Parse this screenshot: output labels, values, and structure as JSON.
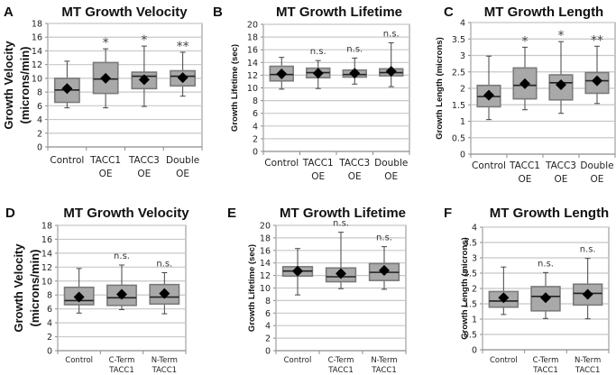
{
  "chart_data": [
    {
      "panel": "A",
      "type": "box",
      "title": "MT Growth Velocity",
      "ylabel_lines": [
        "Growth Velocity",
        "(microns/min)"
      ],
      "ylim": [
        0,
        18
      ],
      "yticks": [
        0,
        2,
        4,
        6,
        8,
        10,
        12,
        14,
        16,
        18
      ],
      "grid": true,
      "categories": [
        [
          "Control"
        ],
        [
          "TACC1",
          "OE"
        ],
        [
          "TACC3",
          "OE"
        ],
        [
          "Double",
          "OE"
        ]
      ],
      "boxes": [
        {
          "min": 5.7,
          "q1": 6.5,
          "median": 8.3,
          "q3": 10.0,
          "max": 12.5,
          "mean": 8.5,
          "sig": ""
        },
        {
          "min": 5.7,
          "q1": 7.8,
          "median": 9.9,
          "q3": 12.3,
          "max": 14.3,
          "mean": 10.0,
          "sig": "*"
        },
        {
          "min": 5.9,
          "q1": 8.5,
          "median": 10.3,
          "q3": 10.9,
          "max": 14.7,
          "mean": 9.8,
          "sig": "*"
        },
        {
          "min": 7.4,
          "q1": 8.9,
          "median": 10.3,
          "q3": 11.1,
          "max": 13.8,
          "mean": 10.1,
          "sig": "**"
        }
      ]
    },
    {
      "panel": "B",
      "type": "box",
      "title": "MT Growth Lifetime",
      "ylabel_lines": [
        "Growth Lifetime (sec)"
      ],
      "ylim": [
        0,
        20
      ],
      "yticks": [
        0,
        2,
        4,
        6,
        8,
        10,
        12,
        14,
        16,
        18,
        20
      ],
      "grid": true,
      "categories": [
        [
          "Control"
        ],
        [
          "TACC1",
          "OE"
        ],
        [
          "TACC3",
          "OE"
        ],
        [
          "Double",
          "OE"
        ]
      ],
      "boxes": [
        {
          "min": 9.8,
          "q1": 11.1,
          "median": 12.1,
          "q3": 13.4,
          "max": 14.8,
          "mean": 12.2,
          "sig": ""
        },
        {
          "min": 9.9,
          "q1": 11.6,
          "median": 12.4,
          "q3": 13.1,
          "max": 14.3,
          "mean": 12.3,
          "sig": "n.s."
        },
        {
          "min": 10.6,
          "q1": 11.7,
          "median": 12.1,
          "q3": 12.8,
          "max": 14.7,
          "mean": 12.3,
          "sig": "n.s."
        },
        {
          "min": 10.2,
          "q1": 11.9,
          "median": 12.4,
          "q3": 13.0,
          "max": 17.1,
          "mean": 12.6,
          "sig": "n.s."
        }
      ]
    },
    {
      "panel": "C",
      "type": "box",
      "title": "MT Growth Length",
      "ylabel_lines": [
        "Growth Length (microns)"
      ],
      "ylim": [
        0,
        4
      ],
      "yticks": [
        0,
        0.5,
        1,
        1.5,
        2,
        2.5,
        3,
        3.5,
        4
      ],
      "grid": true,
      "categories": [
        [
          "Control"
        ],
        [
          "TACC1",
          "OE"
        ],
        [
          "TACC3",
          "OE"
        ],
        [
          "Double",
          "OE"
        ]
      ],
      "boxes": [
        {
          "min": 1.05,
          "q1": 1.44,
          "median": 1.75,
          "q3": 2.09,
          "max": 2.98,
          "mean": 1.79,
          "sig": ""
        },
        {
          "min": 1.35,
          "q1": 1.68,
          "median": 2.09,
          "q3": 2.62,
          "max": 3.25,
          "mean": 2.14,
          "sig": "*"
        },
        {
          "min": 1.24,
          "q1": 1.65,
          "median": 2.17,
          "q3": 2.41,
          "max": 3.42,
          "mean": 2.11,
          "sig": "*"
        },
        {
          "min": 1.54,
          "q1": 1.85,
          "median": 2.23,
          "q3": 2.48,
          "max": 3.28,
          "mean": 2.23,
          "sig": "**"
        }
      ]
    },
    {
      "panel": "D",
      "type": "box",
      "title": "MT Growth Velocity",
      "ylabel_lines": [
        "Growth Velocity",
        "(microns/min)"
      ],
      "ylim": [
        0,
        18
      ],
      "yticks": [
        0,
        2,
        4,
        6,
        8,
        10,
        12,
        14,
        16,
        18
      ],
      "grid": true,
      "categories": [
        [
          "Control"
        ],
        [
          "C-Term",
          "TACC1"
        ],
        [
          "N-Term",
          "TACC1"
        ]
      ],
      "boxes": [
        {
          "min": 5.4,
          "q1": 6.6,
          "median": 7.2,
          "q3": 9.1,
          "max": 11.8,
          "mean": 7.7,
          "sig": ""
        },
        {
          "min": 5.9,
          "q1": 6.5,
          "median": 7.6,
          "q3": 9.4,
          "max": 12.3,
          "mean": 8.1,
          "sig": "n.s."
        },
        {
          "min": 5.3,
          "q1": 6.7,
          "median": 7.7,
          "q3": 9.5,
          "max": 11.2,
          "mean": 8.2,
          "sig": "n.s."
        }
      ]
    },
    {
      "panel": "E",
      "type": "box",
      "title": "MT Growth Lifetime",
      "ylabel_lines": [
        "Growth Lifetime (sec)"
      ],
      "ylim": [
        0,
        20
      ],
      "yticks": [
        0,
        2,
        4,
        6,
        8,
        10,
        12,
        14,
        16,
        18,
        20
      ],
      "grid": true,
      "categories": [
        [
          "Control"
        ],
        [
          "C-Term",
          "TACC1"
        ],
        [
          "N-Term",
          "TACC1"
        ]
      ],
      "boxes": [
        {
          "min": 8.9,
          "q1": 11.9,
          "median": 12.7,
          "q3": 13.4,
          "max": 16.3,
          "mean": 12.7,
          "sig": ""
        },
        {
          "min": 9.9,
          "q1": 11.0,
          "median": 11.8,
          "q3": 13.2,
          "max": 18.9,
          "mean": 12.3,
          "sig": "n.s."
        },
        {
          "min": 9.8,
          "q1": 11.2,
          "median": 12.5,
          "q3": 13.9,
          "max": 16.6,
          "mean": 12.8,
          "sig": "n.s."
        }
      ]
    },
    {
      "panel": "F",
      "type": "box",
      "title": "MT Growth Length",
      "ylabel_lines": [
        "Growth Length (microns)"
      ],
      "ylim": [
        0,
        4
      ],
      "yticks": [
        0,
        0.5,
        1,
        1.5,
        2,
        2.5,
        3,
        3.5,
        4
      ],
      "grid": true,
      "categories": [
        [
          "Control"
        ],
        [
          "C-Term",
          "TACC1"
        ],
        [
          "N-Term",
          "TACC1"
        ]
      ],
      "boxes": [
        {
          "min": 1.15,
          "q1": 1.39,
          "median": 1.59,
          "q3": 1.9,
          "max": 2.7,
          "mean": 1.7,
          "sig": ""
        },
        {
          "min": 1.02,
          "q1": 1.27,
          "median": 1.74,
          "q3": 2.06,
          "max": 2.52,
          "mean": 1.7,
          "sig": "n.s."
        },
        {
          "min": 1.01,
          "q1": 1.46,
          "median": 1.84,
          "q3": 2.14,
          "max": 2.98,
          "mean": 1.81,
          "sig": "n.s."
        }
      ]
    }
  ],
  "colors": {
    "box_fill": "#a9a9a9",
    "box_stroke": "#7a7a7a",
    "grid": "#c8c8c8",
    "axis": "#8c8c8c",
    "marker": "#000000"
  }
}
